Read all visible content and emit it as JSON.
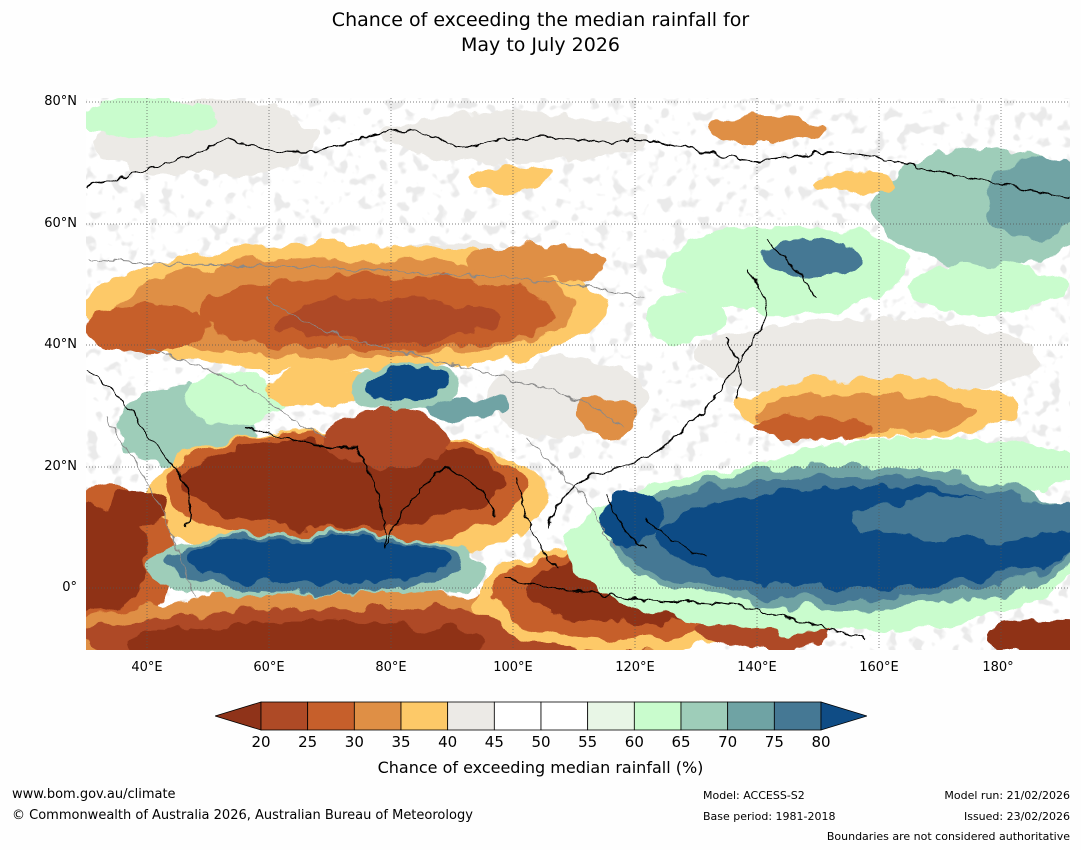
{
  "title": {
    "line1": "Chance of exceeding the median rainfall for",
    "line2": "May to July 2026"
  },
  "map": {
    "lat_labels": [
      "80°N",
      "60°N",
      "40°N",
      "20°N",
      "0°"
    ],
    "lat_values": [
      80,
      60,
      40,
      20,
      0
    ],
    "lon_labels": [
      "40°E",
      "60°E",
      "80°E",
      "100°E",
      "120°E",
      "140°E",
      "160°E",
      "180°"
    ],
    "lon_values": [
      40,
      60,
      80,
      100,
      120,
      140,
      160,
      180
    ],
    "extent": {
      "lon_min": 30,
      "lon_max": 191,
      "lat_min": -10,
      "lat_max": 80
    }
  },
  "colorbar": {
    "ticks": [
      "20",
      "25",
      "30",
      "35",
      "40",
      "45",
      "50",
      "55",
      "60",
      "65",
      "70",
      "75",
      "80"
    ],
    "colors": [
      "#8f3319",
      "#ae4a26",
      "#c65f2b",
      "#df8f45",
      "#fdc968",
      "#eceae6",
      "#ffffff",
      "#ffffff",
      "#e8f6e6",
      "#c9fccd",
      "#9ecdb9",
      "#6fa3a4",
      "#457894",
      "#0f4c85"
    ],
    "label": "Chance of exceeding median rainfall (%)"
  },
  "footer": {
    "url": "www.bom.gov.au/climate",
    "copyright": "© Commonwealth of Australia 2026, Australian Bureau of Meteorology",
    "model": "Model: ACCESS-S2",
    "base_period": "Base period: 1981-2018",
    "model_run": "Model run: 21/02/2026",
    "issued": "Issued: 23/02/2026",
    "disclaimer": "Boundaries are not considered authoritative"
  }
}
